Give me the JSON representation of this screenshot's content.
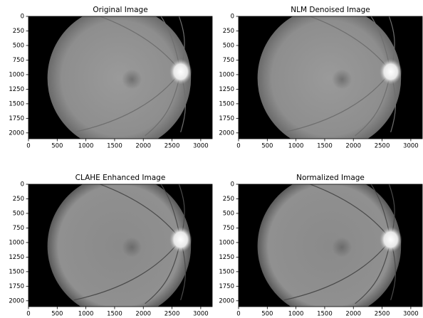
{
  "chart_data": [
    {
      "type": "image",
      "title": "Original Image",
      "xlim": [
        0,
        3200
      ],
      "ylim": [
        2100,
        0
      ],
      "xticks": [
        0,
        500,
        1000,
        1500,
        2000,
        2500,
        3000
      ],
      "yticks": [
        0,
        250,
        500,
        750,
        1000,
        1250,
        1500,
        1750,
        2000
      ]
    },
    {
      "type": "image",
      "title": "NLM Denoised Image",
      "xlim": [
        0,
        3200
      ],
      "ylim": [
        2100,
        0
      ],
      "xticks": [
        0,
        500,
        1000,
        1500,
        2000,
        2500,
        3000
      ],
      "yticks": [
        0,
        250,
        500,
        750,
        1000,
        1250,
        1500,
        1750,
        2000
      ]
    },
    {
      "type": "image",
      "title": "CLAHE Enhanced Image",
      "xlim": [
        0,
        3200
      ],
      "ylim": [
        2100,
        0
      ],
      "xticks": [
        0,
        500,
        1000,
        1500,
        2000,
        2500,
        3000
      ],
      "yticks": [
        0,
        250,
        500,
        750,
        1000,
        1250,
        1500,
        1750,
        2000
      ]
    },
    {
      "type": "image",
      "title": "Normalized Image",
      "xlim": [
        0,
        3200
      ],
      "ylim": [
        2100,
        0
      ],
      "xticks": [
        0,
        500,
        1000,
        1500,
        2000,
        2500,
        3000
      ],
      "yticks": [
        0,
        250,
        500,
        750,
        1000,
        1250,
        1500,
        1750,
        2000
      ]
    }
  ]
}
